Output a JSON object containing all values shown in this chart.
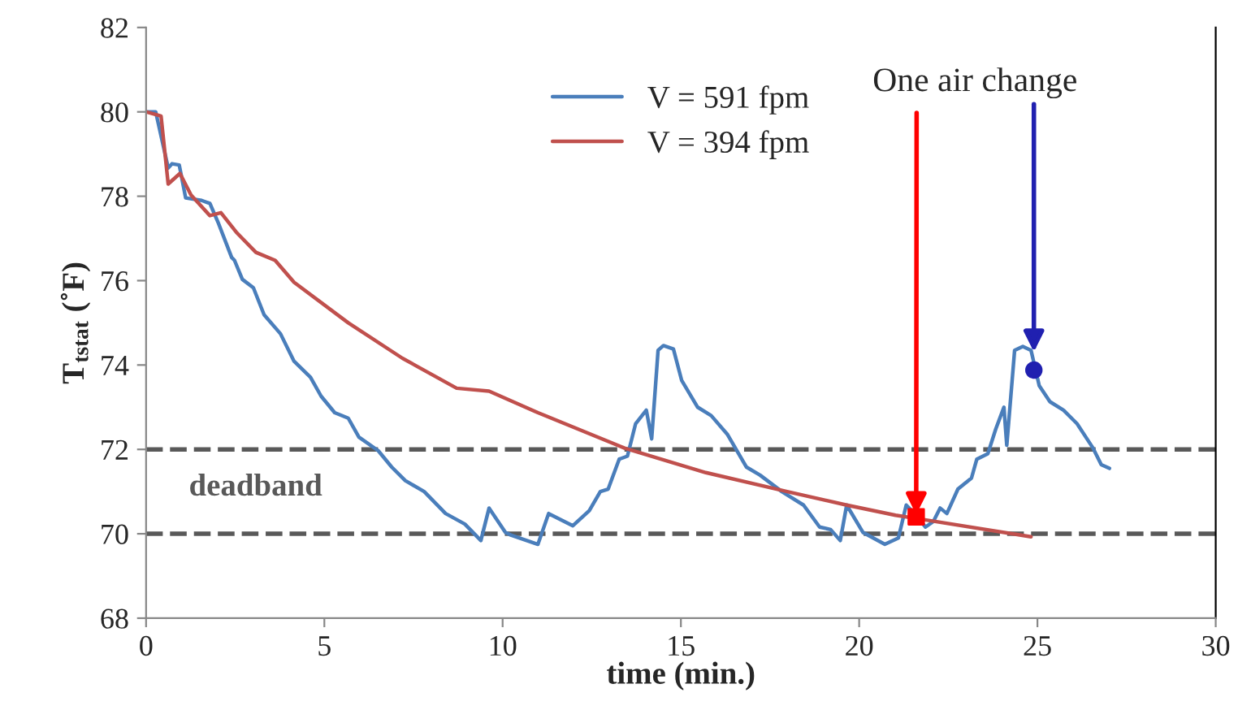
{
  "chart_data": {
    "type": "line",
    "xlabel": "time (min.)",
    "ylabel": "T$_{tstat}$ (˚F)",
    "xlim": [
      0,
      30
    ],
    "xticks": [
      0,
      5,
      10,
      15,
      20,
      25,
      30
    ],
    "ylim": [
      68,
      82
    ],
    "yticks": [
      68,
      70,
      72,
      74,
      76,
      78,
      80,
      82
    ],
    "grid": false,
    "legend": "top",
    "marker": "none",
    "line_style": "solid",
    "series": [
      {
        "name": "V = 591 fpm",
        "color": "#4a7ebb",
        "x": [
          0,
          0.27,
          0.62,
          0.73,
          0.93,
          1.11,
          1.56,
          1.79,
          2.02,
          2.4,
          2.48,
          2.7,
          3.01,
          3.31,
          3.77,
          4.15,
          4.61,
          4.91,
          5.29,
          5.67,
          5.97,
          6.51,
          6.89,
          7.27,
          7.8,
          8.4,
          8.94,
          9.39,
          9.62,
          10.08,
          10.23,
          10.99,
          11.29,
          11.97,
          12.43,
          12.74,
          12.96,
          13.27,
          13.5,
          13.73,
          14.03,
          14.18,
          14.36,
          14.51,
          14.79,
          15.02,
          15.47,
          15.85,
          16.31,
          16.84,
          17.22,
          17.83,
          18.44,
          18.89,
          19.2,
          19.47,
          19.65,
          20.11,
          20.72,
          21.1,
          21.32,
          21.55,
          21.86,
          22.08,
          22.27,
          22.46,
          22.77,
          23.15,
          23.3,
          23.61,
          23.83,
          24.06,
          24.14,
          24.36,
          24.59,
          24.82,
          25.05,
          25.35,
          25.73,
          26.11,
          26.56,
          26.79,
          27.02
        ],
        "values": [
          80,
          80,
          78.67,
          78.77,
          78.74,
          77.96,
          77.9,
          77.83,
          77.38,
          76.55,
          76.48,
          76.03,
          75.83,
          75.19,
          74.74,
          74.09,
          73.71,
          73.26,
          72.87,
          72.74,
          72.29,
          71.97,
          71.58,
          71.26,
          71.0,
          70.48,
          70.23,
          69.84,
          70.61,
          70.03,
          69.97,
          69.75,
          70.48,
          70.19,
          70.55,
          71.0,
          71.06,
          71.77,
          71.84,
          72.61,
          72.93,
          72.25,
          74.35,
          74.46,
          74.38,
          73.64,
          73.0,
          72.8,
          72.35,
          71.58,
          71.39,
          71.0,
          70.68,
          70.16,
          70.1,
          69.84,
          70.68,
          70.03,
          69.75,
          69.9,
          70.68,
          70.48,
          70.16,
          70.29,
          70.61,
          70.48,
          71.06,
          71.32,
          71.77,
          71.9,
          72.48,
          73.0,
          72.1,
          74.35,
          74.44,
          74.35,
          73.51,
          73.13,
          72.93,
          72.61,
          72.03,
          71.64,
          71.55
        ]
      },
      {
        "name": "V = 394 fpm",
        "color": "#c0504d",
        "x": [
          0,
          0.42,
          0.62,
          0.95,
          1.26,
          1.79,
          2.1,
          2.55,
          3.08,
          3.62,
          4.15,
          5.67,
          7.19,
          8.71,
          9.62,
          10.99,
          13.42,
          15.7,
          17.98,
          19.65,
          21.02,
          21.63,
          24.82
        ],
        "values": [
          80,
          79.9,
          78.29,
          78.54,
          78.03,
          77.54,
          77.61,
          77.13,
          76.67,
          76.48,
          75.96,
          75.0,
          74.16,
          73.45,
          73.38,
          72.87,
          72.03,
          71.45,
          71.0,
          70.68,
          70.44,
          70.36,
          69.93
        ]
      },
      {
        "type": "scatter",
        "marker": "square",
        "color": "#ff0000",
        "x": [
          21.6
        ],
        "values": [
          70.4
        ]
      },
      {
        "type": "scatter",
        "marker": "circle",
        "color": "#2020b0",
        "x": [
          24.9
        ],
        "values": [
          73.88
        ]
      }
    ],
    "ref_lines": [
      {
        "axis": "y",
        "value": 72,
        "color": "#595959",
        "line_style": "dashed"
      },
      {
        "axis": "y",
        "value": 70,
        "label": "deadband",
        "color": "#595959",
        "line_style": "dashed"
      }
    ],
    "annotations": [
      {
        "text": "One air change",
        "x": 21.6,
        "y": 70.4
      }
    ]
  }
}
